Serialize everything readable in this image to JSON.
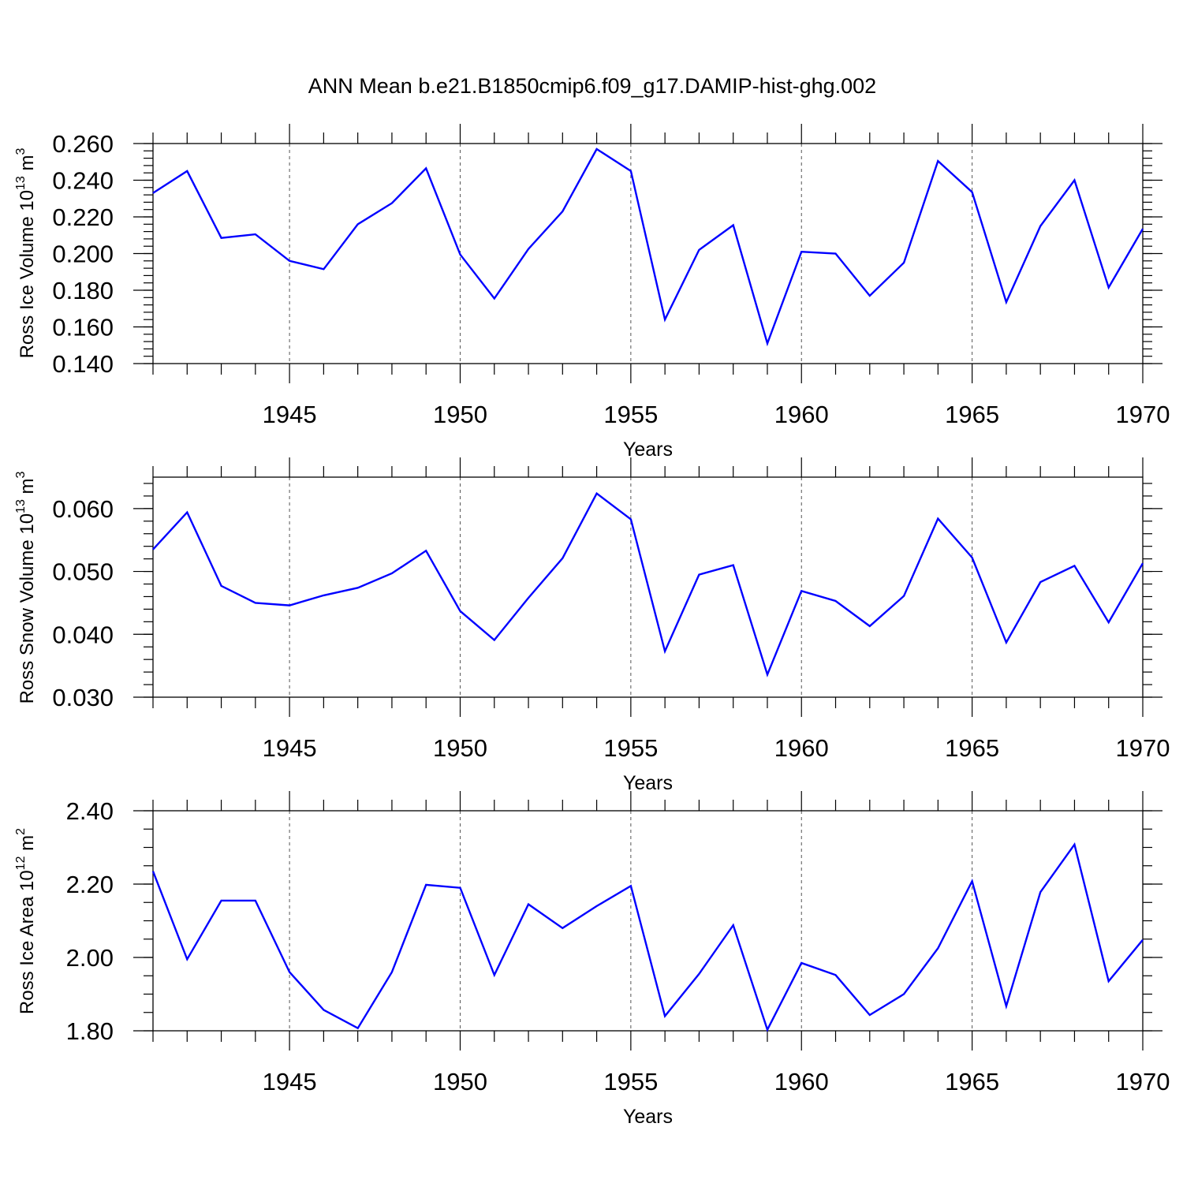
{
  "title": "ANN Mean b.e21.B1850cmip6.f09_g17.DAMIP-hist-ghg.002",
  "colors": {
    "line": "#0000ff",
    "axis": "#000000",
    "grid": "#555555"
  },
  "chart_data": [
    {
      "type": "line",
      "title": "ANN Mean b.e21.B1850cmip6.f09_g17.DAMIP-hist-ghg.002",
      "xlabel": "Years",
      "ylabel": {
        "text": "Ross Ice Volume 10",
        "sup": "13",
        "unit": " m",
        "unit_sup": "3"
      },
      "xlim": [
        1941,
        1970
      ],
      "ylim": [
        0.14,
        0.26
      ],
      "grid": "vertical dashed at major x ticks",
      "x_ticks": [
        "1945",
        "1950",
        "1955",
        "1960",
        "1965",
        "1970"
      ],
      "y_ticks": [
        "0.140",
        "0.160",
        "0.180",
        "0.200",
        "0.220",
        "0.240",
        "0.260"
      ],
      "x": [
        1941,
        1942,
        1943,
        1944,
        1945,
        1946,
        1947,
        1948,
        1949,
        1950,
        1951,
        1952,
        1953,
        1954,
        1955,
        1956,
        1957,
        1958,
        1959,
        1960,
        1961,
        1962,
        1963,
        1964,
        1965,
        1966,
        1967,
        1968,
        1969,
        1970
      ],
      "values": [
        0.233,
        0.245,
        0.2085,
        0.2105,
        0.196,
        0.1915,
        0.216,
        0.2275,
        0.2465,
        0.1995,
        0.1755,
        0.2025,
        0.223,
        0.257,
        0.245,
        0.164,
        0.202,
        0.2155,
        0.151,
        0.201,
        0.2,
        0.177,
        0.195,
        0.2505,
        0.2335,
        0.1735,
        0.215,
        0.24,
        0.1815,
        0.2135
      ]
    },
    {
      "type": "line",
      "xlabel": "Years",
      "ylabel": {
        "text": "Ross Snow Volume 10",
        "sup": "13",
        "unit": " m",
        "unit_sup": "3"
      },
      "xlim": [
        1941,
        1970
      ],
      "ylim": [
        0.03,
        0.065
      ],
      "grid": "vertical dashed at major x ticks",
      "x_ticks": [
        "1945",
        "1950",
        "1955",
        "1960",
        "1965",
        "1970"
      ],
      "y_ticks": [
        "0.030",
        "0.040",
        "0.050",
        "0.060"
      ],
      "x": [
        1941,
        1942,
        1943,
        1944,
        1945,
        1946,
        1947,
        1948,
        1949,
        1950,
        1951,
        1952,
        1953,
        1954,
        1955,
        1956,
        1957,
        1958,
        1959,
        1960,
        1961,
        1962,
        1963,
        1964,
        1965,
        1966,
        1967,
        1968,
        1969,
        1970
      ],
      "values": [
        0.0535,
        0.0594,
        0.0477,
        0.045,
        0.0446,
        0.0462,
        0.0474,
        0.0497,
        0.0533,
        0.0437,
        0.0391,
        0.0458,
        0.0521,
        0.0624,
        0.0583,
        0.0373,
        0.0495,
        0.051,
        0.0336,
        0.0469,
        0.0453,
        0.0413,
        0.0461,
        0.0584,
        0.0522,
        0.0387,
        0.0483,
        0.0509,
        0.0419,
        0.0513
      ]
    },
    {
      "type": "line",
      "xlabel": "Years",
      "ylabel": {
        "text": "Ross Ice Area 10",
        "sup": "12",
        "unit": " m",
        "unit_sup": "2"
      },
      "xlim": [
        1941,
        1970
      ],
      "ylim": [
        1.8,
        2.4
      ],
      "grid": "vertical dashed at major x ticks",
      "x_ticks": [
        "1945",
        "1950",
        "1955",
        "1960",
        "1965",
        "1970"
      ],
      "y_ticks": [
        "1.80",
        "2.00",
        "2.20",
        "2.40"
      ],
      "x": [
        1941,
        1942,
        1943,
        1944,
        1945,
        1946,
        1947,
        1948,
        1949,
        1950,
        1951,
        1952,
        1953,
        1954,
        1955,
        1956,
        1957,
        1958,
        1959,
        1960,
        1961,
        1962,
        1963,
        1964,
        1965,
        1966,
        1967,
        1968,
        1969,
        1970
      ],
      "values": [
        2.235,
        1.995,
        2.155,
        2.155,
        1.96,
        1.857,
        1.807,
        1.96,
        2.198,
        2.19,
        1.952,
        2.145,
        2.08,
        2.14,
        2.195,
        1.84,
        1.955,
        2.088,
        1.803,
        1.985,
        1.952,
        1.843,
        1.9,
        2.025,
        2.208,
        1.867,
        2.178,
        2.308,
        1.935,
        2.048
      ]
    }
  ]
}
